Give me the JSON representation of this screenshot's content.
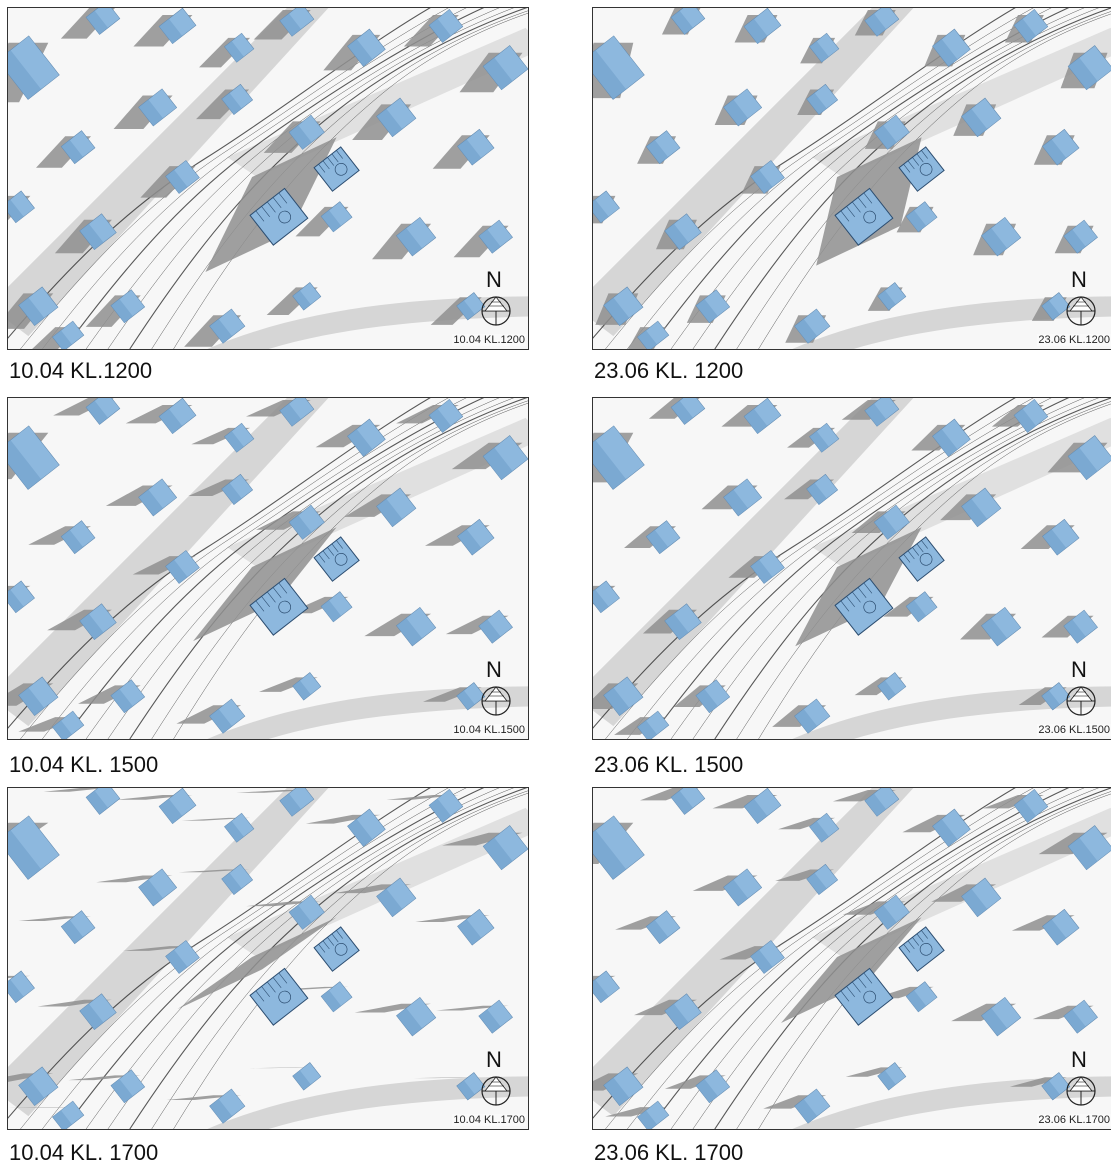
{
  "panels": [
    {
      "caption": "10.04 KL.1200",
      "stamp": "10.04 KL.1200",
      "shadow_angle": 12,
      "shadow_len": 30
    },
    {
      "caption": "23.06 KL. 1200",
      "stamp": "23.06 KL.1200",
      "shadow_angle": 20,
      "shadow_len": 14
    },
    {
      "caption": "10.04 KL. 1500",
      "stamp": "10.04 KL.1500",
      "shadow_angle": -28,
      "shadow_len": 42
    },
    {
      "caption": "23.06 KL. 1500",
      "stamp": "23.06 KL.1500",
      "shadow_angle": -20,
      "shadow_len": 28
    },
    {
      "caption": "10.04 KL. 1700",
      "stamp": "10.04 KL.1700",
      "shadow_angle": -48,
      "shadow_len": 70
    },
    {
      "caption": "23.06 KL. 1700",
      "stamp": "23.06 KL.1700",
      "shadow_angle": -40,
      "shadow_len": 46
    }
  ],
  "north_label": "N",
  "colors": {
    "building": "#8db8de",
    "building_dark": "#6f9fca",
    "shadow": "#8f8f8f",
    "road": "#d6d6d6",
    "ground": "#f7f7f7",
    "contour": "#222222"
  }
}
